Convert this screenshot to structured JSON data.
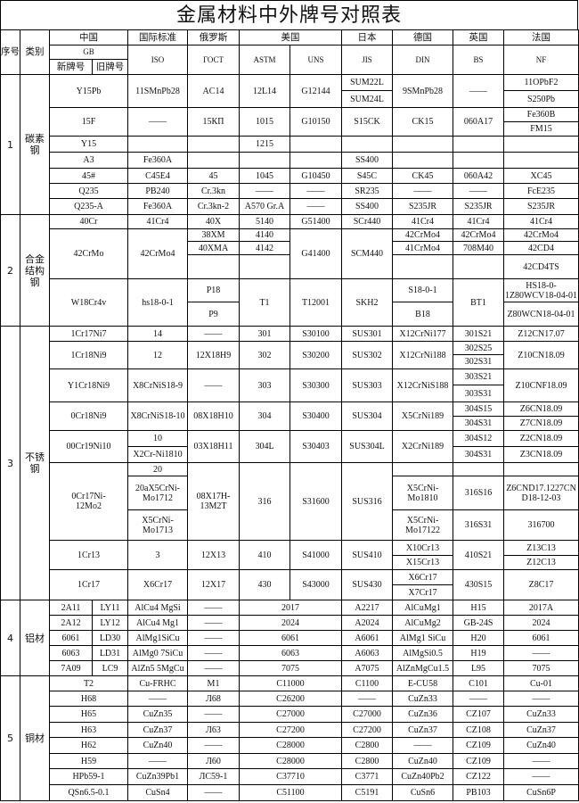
{
  "title": "金属材料中外牌号对照表",
  "header": {
    "no": "序号",
    "category": "类别",
    "china": "中国",
    "intl": "国际标准",
    "russia": "俄罗斯",
    "usa": "美国",
    "japan": "日本",
    "germany": "德国",
    "uk": "英国",
    "france": "法国",
    "gb": "GB",
    "iso": "ISO",
    "gost": "ГОСТ",
    "astm": "ASTM",
    "uns": "UNS",
    "jis": "JIS",
    "din": "DIN",
    "bs": "BS",
    "nf": "NF",
    "gb_new": "新牌号",
    "gb_old": "旧牌号"
  },
  "sections": [
    {
      "no": "1",
      "category": "碳素钢",
      "rows": [
        [
          "Y15Pb",
          "11SMnPb28",
          "AC14",
          "12L14",
          "G12144",
          "SUM22L",
          "9SMnPb28",
          "——",
          "11OPbF2"
        ],
        [
          "SUM24L",
          "S250Pb"
        ],
        [
          "15F",
          "——",
          "15КП",
          "1015",
          "G10150",
          "S15CK",
          "CK15",
          "060A17",
          "Fe360B"
        ],
        [
          "FM15"
        ],
        [
          "Y15",
          "",
          "",
          "1215",
          "",
          "",
          "",
          "",
          ""
        ],
        [
          "A3",
          "Fe360A",
          "",
          "",
          "",
          "SS400",
          "",
          "",
          ""
        ],
        [
          "45#",
          "C45E4",
          "45",
          "1045",
          "G10450",
          "S45C",
          "CK45",
          "060A42",
          "XC45"
        ],
        [
          "Q235",
          "PB240",
          "Cr.3kn",
          "——",
          "——",
          "SR235",
          "——",
          "——",
          "FcE235"
        ],
        [
          "Q235-A",
          "Fe360A",
          "Cr.3kn-2",
          "A570 Gr.A",
          "——",
          "SS400",
          "S235JR",
          "S235JR",
          "S235JR"
        ]
      ]
    },
    {
      "no": "2",
      "category": "合金\n结构\n钢",
      "rows": [
        [
          "40Cr",
          "41Cr4",
          "40X",
          "5140",
          "G51400",
          "SCr440",
          "41Cr4",
          "41Cr4",
          "41Cr4"
        ],
        [
          "42CrMo",
          "42CrMo4",
          "38XM",
          "4140",
          "G41400",
          "SCM440",
          "42CrMo4",
          "42CrMo4",
          "42CrMo4"
        ],
        [
          "40XMA",
          "4142",
          "41CrMo4",
          "708M40",
          "42CD4"
        ],
        [
          "",
          "",
          "",
          "",
          "42CD4TS"
        ],
        [
          "W18Cr4v",
          "hs18-0-1",
          "P18",
          "T1",
          "T12001",
          "SKH2",
          "S18-0-1",
          "BT1",
          "HS18-0-\n1Z80WCV18-04-01"
        ],
        [
          "P9",
          "B18",
          "Z80WCN18-04-01"
        ]
      ]
    },
    {
      "no": "3",
      "category": "不锈钢",
      "rows": [
        [
          "1Cr17Ni7",
          "14",
          "——",
          "301",
          "S30100",
          "SUS301",
          "X12CrNi177",
          "301S21",
          "Z12CN17.07"
        ],
        [
          "1Cr18Ni9",
          "12",
          "12X18H9",
          "302",
          "S30200",
          "SUS302",
          "X12CrNi188",
          "302S25",
          "Z10CN18.09"
        ],
        [
          "302S31"
        ],
        [
          "Y1Cr18Ni9",
          "X8CrNiS18-9",
          "——",
          "303",
          "S30300",
          "SUS303",
          "X12CrNiS188",
          "303S21",
          "Z10CNF18.09"
        ],
        [
          "303S31"
        ],
        [
          "0Cr18Ni9",
          "X8CrNiS18-10",
          "08X18H10",
          "304",
          "S30400",
          "SUS304",
          "X5CrNi189",
          "304S15",
          "Z6CN18.09"
        ],
        [
          "304S31",
          "Z7CN18.09"
        ],
        [
          "00Cr19Ni10",
          "10",
          "03X18H11",
          "304L",
          "S30403",
          "SUS304L",
          "X2CrNi189",
          "304S12",
          "Z2CN18.09"
        ],
        [
          "X2Cr-Ni1810",
          "304S31",
          "Z3CN18.09"
        ],
        [
          "0Cr17Ni-\n12Mo2",
          "20",
          "08X17H-\n13M2T",
          "316",
          "S31600",
          "SUS316",
          "",
          "",
          ""
        ],
        [
          "20aX5CrNi-\nMo1712",
          "X5CrNi-\nMo1810",
          "316S16",
          "Z6CND17.1227CN\nD18-12-03"
        ],
        [
          "X5CrNi-\nMo1713",
          "X5CrNi-\nMo17122",
          "316S31",
          "316700"
        ],
        [
          "1Cr13",
          "3",
          "12X13",
          "410",
          "S41000",
          "SUS410",
          "X10Cr13",
          "410S21",
          "Z13C13"
        ],
        [
          "X15Cr13",
          "Z12C13"
        ],
        [
          "1Cr17",
          "X6Cr17",
          "12X17",
          "430",
          "S43000",
          "SUS430",
          "X6Cr17",
          "430S15",
          "Z8C17"
        ],
        [
          "X7Cr17"
        ]
      ]
    },
    {
      "no": "4",
      "category": "铝材",
      "rows": [
        [
          "2A11",
          "LY11",
          "AlCu4 MgSi",
          "——",
          "2017",
          "A2217",
          "AlCuMg1",
          "H15",
          "2017A"
        ],
        [
          "2A12",
          "LY12",
          "AlCu4 Mg1",
          "——",
          "2024",
          "A2024",
          "AlCuMg2",
          "GB-24S",
          "2024"
        ],
        [
          "6061",
          "LD30",
          "AlMg1SiCu",
          "——",
          "6061",
          "A6061",
          "AlMg1 SiCu",
          "H20",
          "6061"
        ],
        [
          "6063",
          "LD31",
          "AlMg0 7SiCu",
          "——",
          "6063",
          "A6063",
          "AlMgSi0.5",
          "H19",
          "——"
        ],
        [
          "7A09",
          "LC9",
          "AlZn5 5MgCu",
          "——",
          "7075",
          "A7075",
          "AlZnMgCu1.5",
          "L95",
          "7075"
        ]
      ]
    },
    {
      "no": "5",
      "category": "铜材",
      "rows": [
        [
          "T2",
          "Cu-FRHC",
          "M1",
          "C11000",
          "C1100",
          "E-CU58",
          "C101",
          "Cu-01"
        ],
        [
          "H68",
          "——",
          "Л68",
          "C26200",
          "——",
          "CuZn33",
          "——",
          "——"
        ],
        [
          "H65",
          "CuZn35",
          "——",
          "C27000",
          "C27000",
          "CuZn36",
          "CZ107",
          "CuZn33"
        ],
        [
          "H63",
          "CuZn37",
          "Л63",
          "C27200",
          "C27200",
          "CuZn37",
          "CZ108",
          "CuZn37"
        ],
        [
          "H62",
          "CuZn40",
          "——",
          "C28000",
          "C2800",
          "——",
          "CZ109",
          "CuZn40"
        ],
        [
          "H59",
          "——",
          "Л60",
          "C28000",
          "C2800",
          "CuZn40",
          "CZ109",
          "——"
        ],
        [
          "HPb59-1",
          "CuZn39Pb1",
          "ЛС59-1",
          "C37710",
          "C3771",
          "CuZn40Pb2",
          "CZ122",
          "——"
        ],
        [
          "QSn6.5-0.1",
          "CuSn4",
          "——",
          "C51100",
          "C5191",
          "CuSn6",
          "PB103",
          "CuSn6P"
        ]
      ]
    }
  ]
}
